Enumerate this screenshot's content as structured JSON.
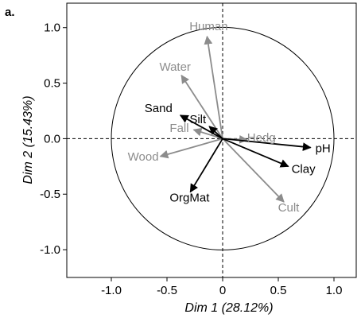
{
  "chart_data": {
    "type": "scatter",
    "panel_label": "a.",
    "xlabel": "Dim 1 (28.12%)",
    "ylabel": "Dim 2 (15.43%)",
    "xlim": [
      -1.4,
      1.2
    ],
    "ylim": [
      -1.25,
      1.22
    ],
    "xticks": [
      -1.0,
      -0.5,
      0.0,
      0.5,
      1.0
    ],
    "yticks": [
      -1.0,
      -0.5,
      0.0,
      0.5,
      1.0
    ],
    "xtick_labels": [
      "-1.0",
      "-0.5",
      "0",
      "0.5",
      "1.0"
    ],
    "ytick_labels": [
      "-1.0",
      "-0.5",
      "0.0",
      "0.5",
      "1.0"
    ],
    "grid": false,
    "unit_circle": true,
    "colors": {
      "active": "#000000",
      "supplementary": "#8c8c8c"
    },
    "variables": [
      {
        "name": "Sand",
        "x": -0.38,
        "y": 0.21,
        "group": "active"
      },
      {
        "name": "Silt",
        "x": -0.12,
        "y": 0.11,
        "group": "active"
      },
      {
        "name": "pH",
        "x": 0.79,
        "y": -0.08,
        "group": "active"
      },
      {
        "name": "Clay",
        "x": 0.59,
        "y": -0.25,
        "group": "active"
      },
      {
        "name": "OrgMat",
        "x": -0.29,
        "y": -0.48,
        "group": "active"
      },
      {
        "name": "Human",
        "x": -0.14,
        "y": 0.92,
        "group": "supplementary"
      },
      {
        "name": "Water",
        "x": -0.37,
        "y": 0.57,
        "group": "supplementary"
      },
      {
        "name": "Fall",
        "x": -0.26,
        "y": 0.08,
        "group": "supplementary"
      },
      {
        "name": "Hedg",
        "x": 0.22,
        "y": -0.01,
        "group": "supplementary"
      },
      {
        "name": "Wood",
        "x": -0.56,
        "y": -0.16,
        "group": "supplementary"
      },
      {
        "name": "Cult",
        "x": 0.55,
        "y": -0.57,
        "group": "supplementary"
      }
    ]
  }
}
